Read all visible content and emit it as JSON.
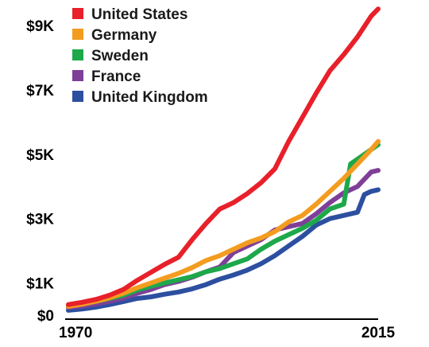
{
  "chart_data": {
    "type": "line",
    "title": "",
    "xlabel": "",
    "ylabel": "",
    "xlim": [
      1970,
      2015
    ],
    "ylim": [
      0,
      9500
    ],
    "x_tick_labels": [
      {
        "value": 1970,
        "label": "1970"
      },
      {
        "value": 2015,
        "label": "2015"
      }
    ],
    "y_tick_labels": [
      {
        "value": 0,
        "label": "$0"
      },
      {
        "value": 1000,
        "label": "$1K"
      },
      {
        "value": 3000,
        "label": "$3K"
      },
      {
        "value": 5000,
        "label": "$5K"
      },
      {
        "value": 7000,
        "label": "$7K"
      },
      {
        "value": 9000,
        "label": "$9K"
      }
    ],
    "grid": false,
    "legend_position": "top-left",
    "series": [
      {
        "name": "United States",
        "color": "#e8202a",
        "x": [
          1970,
          1972,
          1974,
          1976,
          1978,
          1980,
          1982,
          1984,
          1986,
          1988,
          1990,
          1992,
          1994,
          1996,
          1998,
          2000,
          2002,
          2004,
          2006,
          2008,
          2010,
          2012,
          2014,
          2015
        ],
        "y": [
          330,
          400,
          490,
          620,
          800,
          1080,
          1330,
          1580,
          1800,
          2350,
          2850,
          3300,
          3500,
          3780,
          4120,
          4550,
          5400,
          6150,
          6900,
          7600,
          8100,
          8650,
          9300,
          9520
        ]
      },
      {
        "name": "Germany",
        "color": "#f39c1f",
        "x": [
          1970,
          1972,
          1974,
          1976,
          1978,
          1980,
          1982,
          1984,
          1986,
          1988,
          1990,
          1992,
          1994,
          1996,
          1998,
          2000,
          2002,
          2004,
          2006,
          2008,
          2010,
          2012,
          2014,
          2015
        ],
        "y": [
          270,
          340,
          430,
          540,
          680,
          850,
          1000,
          1150,
          1300,
          1480,
          1700,
          1850,
          2050,
          2250,
          2400,
          2600,
          2900,
          3100,
          3450,
          3850,
          4250,
          4700,
          5150,
          5400
        ]
      },
      {
        "name": "Sweden",
        "color": "#1da84a",
        "x": [
          1970,
          1972,
          1974,
          1976,
          1978,
          1980,
          1982,
          1984,
          1986,
          1988,
          1990,
          1992,
          1994,
          1996,
          1998,
          2000,
          2002,
          2004,
          2006,
          2008,
          2010,
          2011,
          2012,
          2014,
          2015
        ],
        "y": [
          300,
          360,
          430,
          520,
          620,
          780,
          900,
          1000,
          1100,
          1200,
          1350,
          1450,
          1600,
          1750,
          2050,
          2300,
          2500,
          2700,
          2950,
          3300,
          3450,
          4700,
          4850,
          5150,
          5300
        ]
      },
      {
        "name": "France",
        "color": "#7f3f98",
        "x": [
          1970,
          1972,
          1974,
          1976,
          1978,
          1980,
          1982,
          1984,
          1986,
          1988,
          1990,
          1992,
          1994,
          1996,
          1998,
          2000,
          2002,
          2004,
          2006,
          2008,
          2010,
          2012,
          2014,
          2015
        ],
        "y": [
          240,
          280,
          350,
          430,
          530,
          680,
          800,
          950,
          1050,
          1180,
          1350,
          1500,
          1950,
          2150,
          2350,
          2650,
          2750,
          2850,
          3150,
          3500,
          3800,
          4000,
          4450,
          4500
        ]
      },
      {
        "name": "United Kingdom",
        "color": "#2c4fa0",
        "x": [
          1970,
          1972,
          1974,
          1976,
          1978,
          1980,
          1982,
          1984,
          1986,
          1988,
          1990,
          1992,
          1994,
          1996,
          1998,
          2000,
          2002,
          2004,
          2006,
          2008,
          2010,
          2012,
          2013,
          2014,
          2015
        ],
        "y": [
          150,
          190,
          250,
          330,
          420,
          520,
          570,
          650,
          720,
          820,
          950,
          1120,
          1250,
          1400,
          1600,
          1850,
          2150,
          2450,
          2800,
          3000,
          3100,
          3200,
          3750,
          3850,
          3900
        ]
      }
    ]
  }
}
